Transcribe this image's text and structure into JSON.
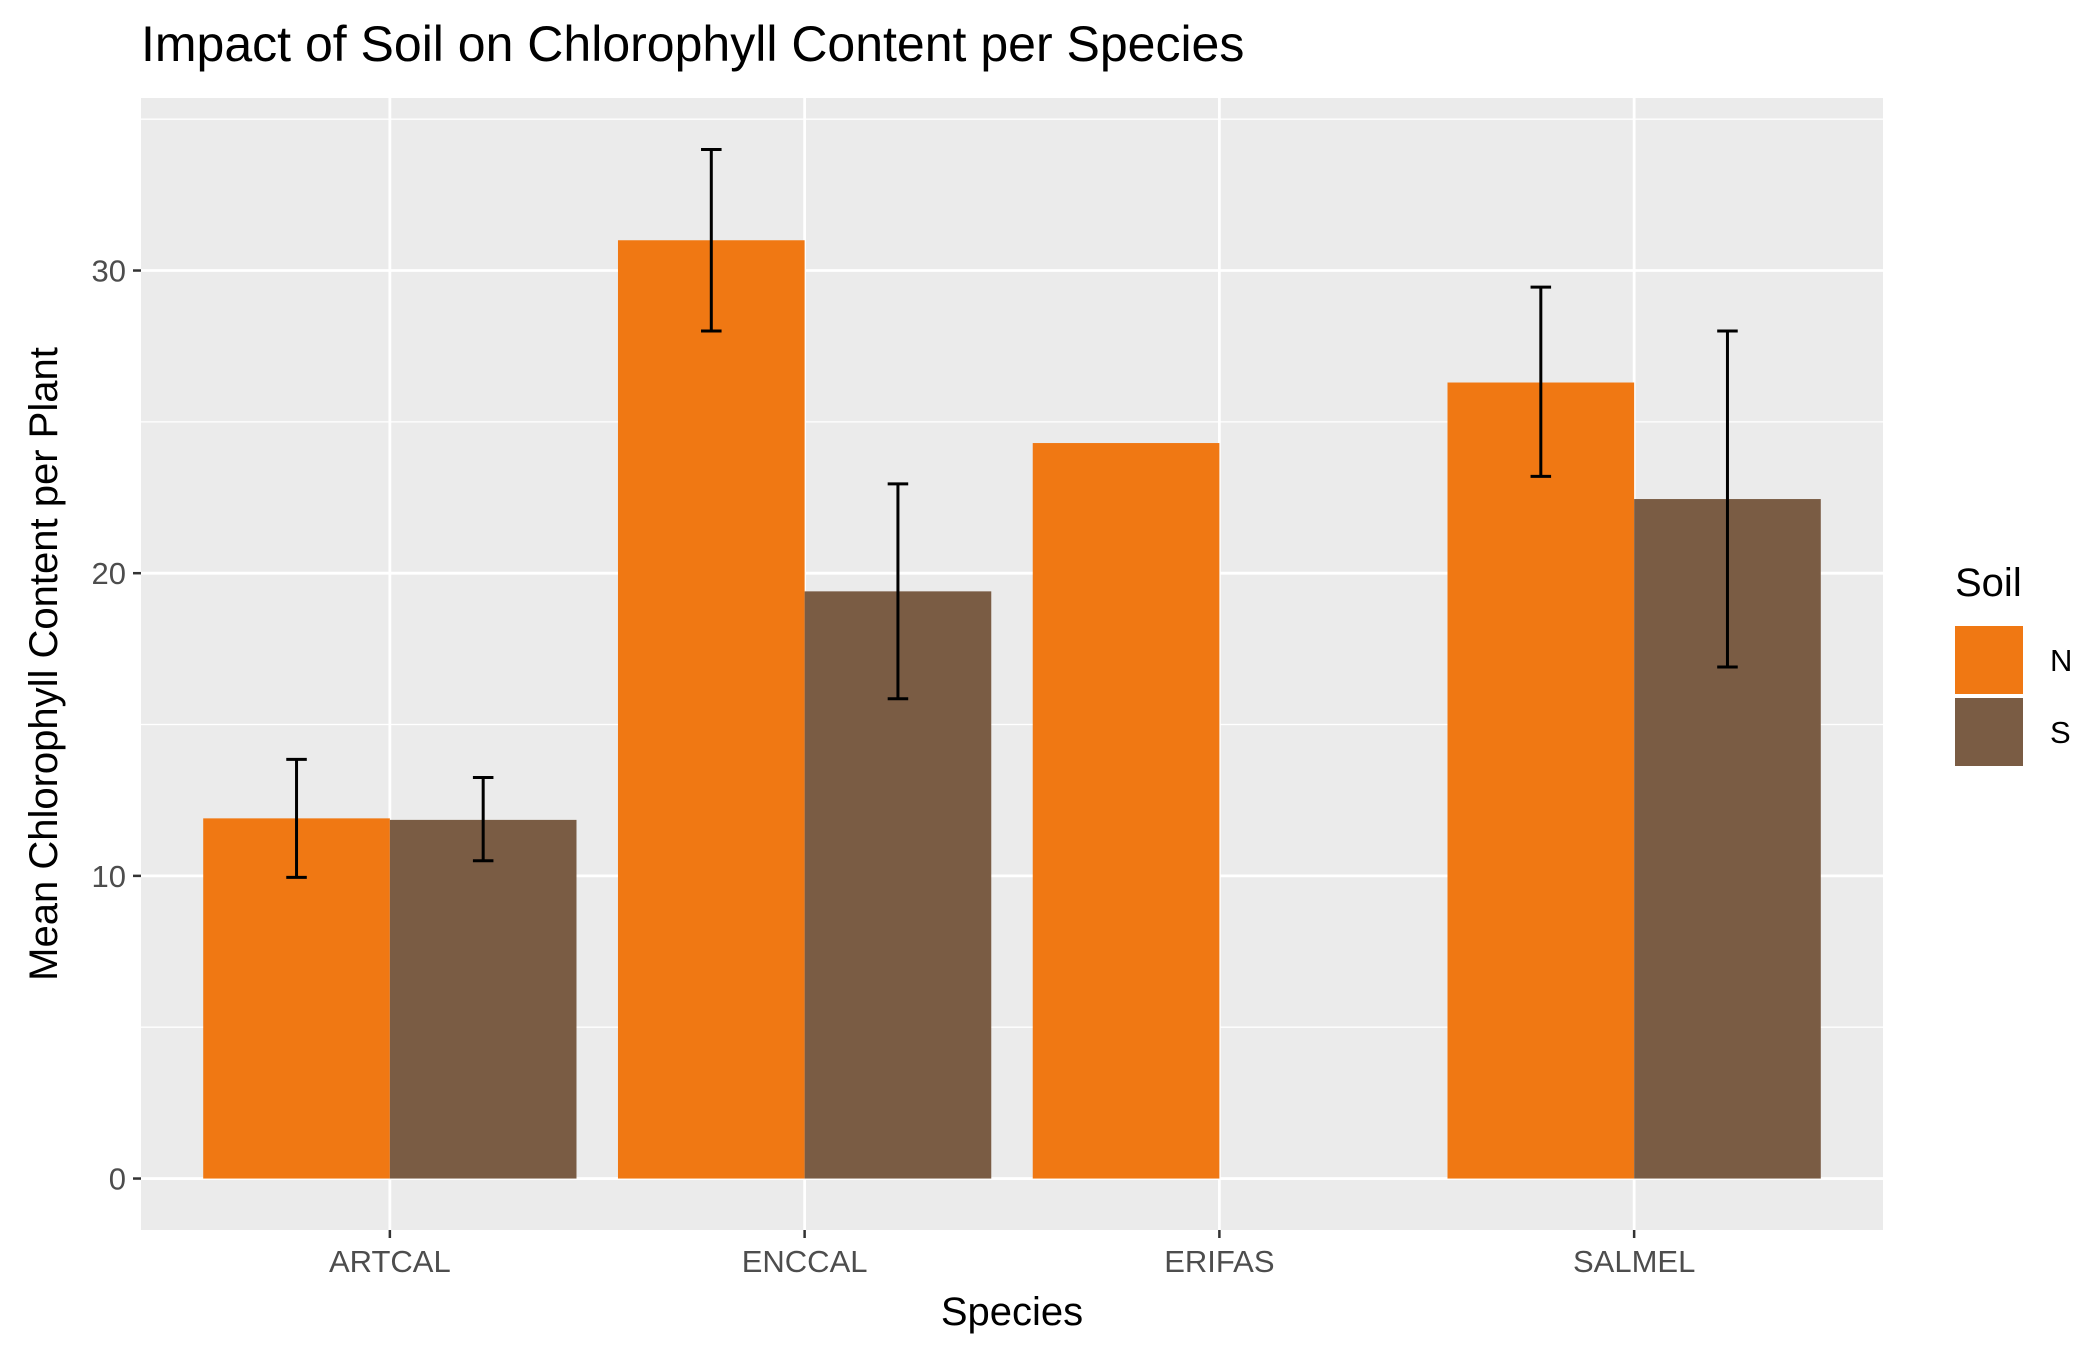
{
  "chart_data": {
    "type": "bar",
    "title": "Impact of Soil on Chlorophyll Content per Species",
    "xlabel": "Species",
    "ylabel": "Mean Chlorophyll Content per Plant",
    "categories": [
      "ARTCAL",
      "ENCCAL",
      "ERIFAS",
      "SALMEL"
    ],
    "series": [
      {
        "name": "N",
        "color": "#F07813",
        "values": [
          11.9,
          31.0,
          24.3,
          26.3
        ],
        "error_low": [
          9.95,
          28.0,
          null,
          23.2
        ],
        "error_high": [
          13.85,
          34.0,
          null,
          29.45
        ]
      },
      {
        "name": "S",
        "color": "#7A5C44",
        "values": [
          11.85,
          19.4,
          null,
          22.45
        ],
        "error_low": [
          10.5,
          15.85,
          null,
          16.9
        ],
        "error_high": [
          13.25,
          22.95,
          null,
          28.0
        ]
      }
    ],
    "ylim": [
      -1.7,
      35.7
    ],
    "y_ticks": [
      0,
      10,
      20,
      30
    ],
    "grid": true,
    "legend": {
      "title": "Soil",
      "position": "right"
    }
  }
}
